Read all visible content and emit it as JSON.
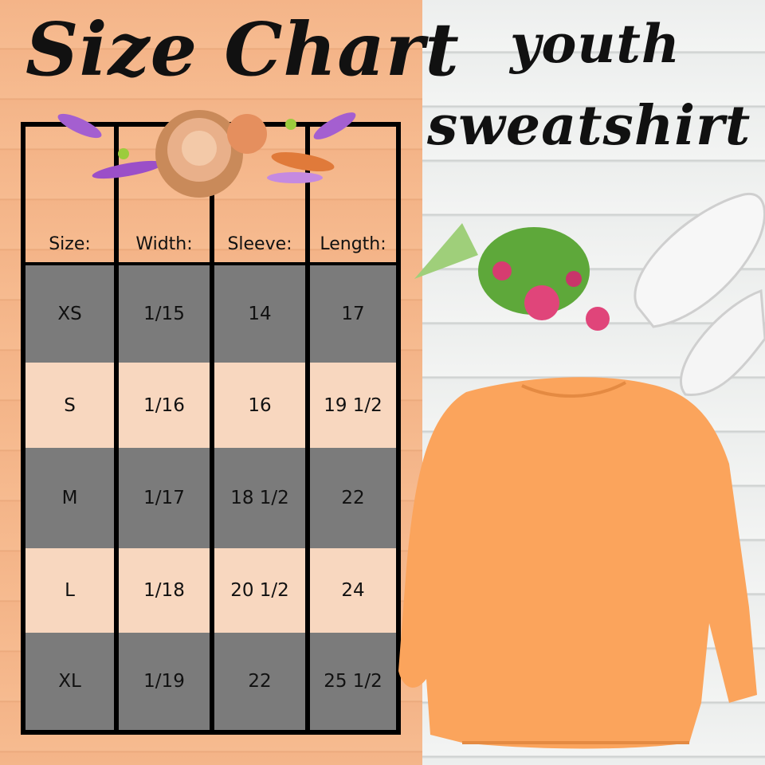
{
  "title": "Size Chart",
  "subtitle_line1": "youth",
  "subtitle_line2": "sweatshirt",
  "colors": {
    "left_bg": "#f4b488",
    "dark_row": "#7b7b7b",
    "light_row": "#f8d7bf",
    "sweatshirt": "#fba45c"
  },
  "table": {
    "headers": [
      "Size:",
      "Width:",
      "Sleeve:",
      "Length:"
    ],
    "rows": [
      [
        "XS",
        "1/15",
        "14",
        "17"
      ],
      [
        "S",
        "1/16",
        "16",
        "19 1/2"
      ],
      [
        "M",
        "1/17",
        "18 1/2",
        "22"
      ],
      [
        "L",
        "1/18",
        "20 1/2",
        "24"
      ],
      [
        "XL",
        "1/19",
        "22",
        "25 1/2"
      ]
    ]
  }
}
